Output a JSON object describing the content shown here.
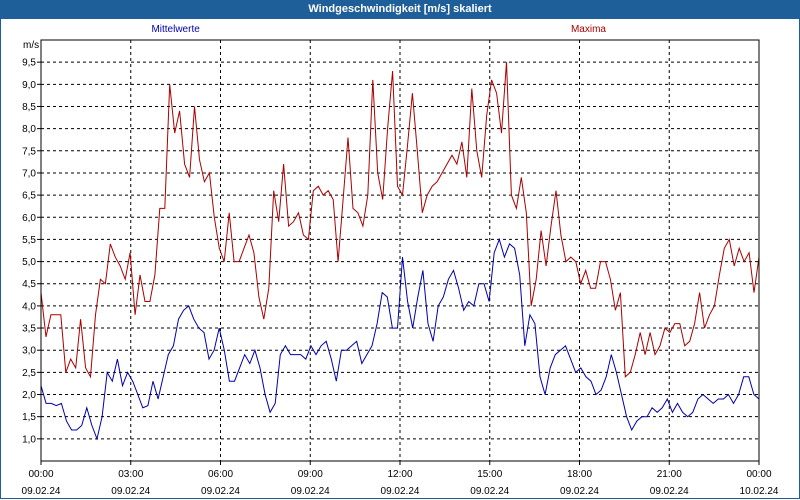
{
  "window": {
    "title": "Windgeschwindigkeit [m/s] skaliert"
  },
  "chart_data": {
    "type": "line",
    "ylabel": "m/s",
    "ylim": [
      0.5,
      10
    ],
    "yticks": [
      "1,0",
      "1,5",
      "2,0",
      "2,5",
      "3,0",
      "3,5",
      "4,0",
      "4,5",
      "5,0",
      "5,5",
      "6,0",
      "6,5",
      "7,0",
      "7,5",
      "8,0",
      "8,5",
      "9,0",
      "9,5"
    ],
    "xlim": [
      0,
      24
    ],
    "xticks": [
      {
        "time": "00:00",
        "date": "09.02.24"
      },
      {
        "time": "03:00",
        "date": "09.02.24"
      },
      {
        "time": "06:00",
        "date": "09.02.24"
      },
      {
        "time": "09:00",
        "date": "09.02.24"
      },
      {
        "time": "12:00",
        "date": "09.02.24"
      },
      {
        "time": "15:00",
        "date": "09.02.24"
      },
      {
        "time": "18:00",
        "date": "09.02.24"
      },
      {
        "time": "21:00",
        "date": "09.02.24"
      },
      {
        "time": "00:00",
        "date": "10.02.24"
      }
    ],
    "grid": true,
    "legend_placement": "top",
    "series": [
      {
        "name": "Mittelwerte",
        "color": "#0000aa",
        "values": [
          2.2,
          1.8,
          1.8,
          1.75,
          1.8,
          1.4,
          1.2,
          1.2,
          1.3,
          1.7,
          1.3,
          1.0,
          1.5,
          2.5,
          2.3,
          2.8,
          2.2,
          2.5,
          2.3,
          2.0,
          1.7,
          1.75,
          2.3,
          1.9,
          2.4,
          2.9,
          3.1,
          3.7,
          3.9,
          4.0,
          3.7,
          3.5,
          3.4,
          2.8,
          3.0,
          3.5,
          3.0,
          2.3,
          2.3,
          2.6,
          2.9,
          2.7,
          3.0,
          2.6,
          2.0,
          1.6,
          1.8,
          2.9,
          3.1,
          2.9,
          2.9,
          2.9,
          2.8,
          3.1,
          2.9,
          3.1,
          3.2,
          2.8,
          2.3,
          3.0,
          3.0,
          3.1,
          3.2,
          2.7,
          2.9,
          3.1,
          3.6,
          4.3,
          4.2,
          3.5,
          3.5,
          5.1,
          4.1,
          3.5,
          4.2,
          4.8,
          3.6,
          3.2,
          4.0,
          4.2,
          4.6,
          4.8,
          4.4,
          3.9,
          4.1,
          4.0,
          4.5,
          4.5,
          4.1,
          5.2,
          5.5,
          5.1,
          5.4,
          5.3,
          4.7,
          3.1,
          3.8,
          3.6,
          2.4,
          2.0,
          2.6,
          2.9,
          3.0,
          3.1,
          2.8,
          2.5,
          2.6,
          2.4,
          2.3,
          2.0,
          2.1,
          2.4,
          2.9,
          2.5,
          2.0,
          1.5,
          1.2,
          1.4,
          1.5,
          1.5,
          1.7,
          1.6,
          1.7,
          1.9,
          1.6,
          1.8,
          1.6,
          1.5,
          1.6,
          1.9,
          2.0,
          1.9,
          1.8,
          1.9,
          1.9,
          2.0,
          1.8,
          2.0,
          2.4,
          2.4,
          2.0,
          1.9
        ]
      },
      {
        "name": "Maxima",
        "color": "#aa0000",
        "values": [
          4.3,
          3.3,
          3.8,
          3.8,
          3.8,
          2.5,
          2.8,
          2.6,
          3.7,
          2.6,
          2.4,
          3.8,
          4.6,
          4.5,
          5.4,
          5.1,
          4.9,
          4.6,
          5.2,
          3.8,
          4.7,
          4.1,
          4.1,
          4.7,
          6.2,
          6.2,
          9.0,
          7.9,
          8.4,
          7.2,
          6.9,
          8.5,
          7.3,
          6.8,
          7.0,
          6.0,
          5.3,
          5.0,
          6.1,
          5.0,
          5.0,
          5.3,
          5.6,
          5.2,
          4.2,
          3.7,
          4.4,
          6.6,
          5.9,
          7.2,
          5.8,
          5.9,
          6.1,
          5.6,
          5.5,
          6.6,
          6.7,
          6.5,
          6.6,
          6.4,
          5.0,
          6.4,
          7.8,
          6.2,
          6.1,
          5.8,
          6.5,
          9.1,
          7.0,
          6.4,
          8.0,
          9.3,
          6.7,
          6.5,
          7.6,
          8.8,
          7.5,
          6.1,
          6.5,
          6.7,
          6.8,
          7.0,
          7.2,
          7.4,
          7.2,
          7.7,
          6.9,
          8.9,
          7.5,
          6.9,
          8.3,
          9.1,
          8.8,
          7.9,
          9.5,
          6.5,
          6.2,
          6.9,
          6.1,
          4.0,
          4.6,
          5.7,
          4.9,
          5.8,
          6.6,
          5.6,
          5.0,
          5.1,
          5.0,
          4.5,
          4.8,
          4.4,
          4.4,
          5.0,
          5.0,
          4.6,
          3.9,
          4.3,
          2.4,
          2.5,
          2.9,
          3.4,
          2.9,
          3.4,
          2.9,
          3.1,
          3.5,
          3.4,
          3.6,
          3.6,
          3.1,
          3.2,
          3.6,
          4.3,
          3.5,
          3.8,
          4.0,
          4.7,
          5.3,
          5.5,
          4.9,
          5.3,
          5.0,
          5.2,
          4.3,
          5.1
        ]
      }
    ]
  }
}
